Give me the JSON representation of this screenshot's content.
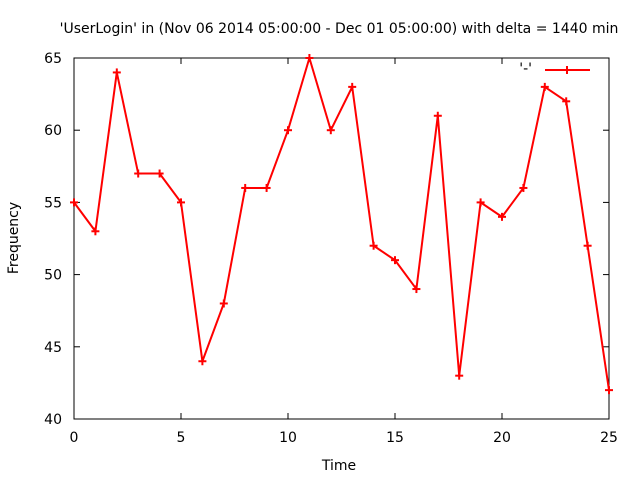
{
  "chart_data": {
    "type": "line",
    "title": "'UserLogin' in (Nov 06 2014 05:00:00 - Dec 01 05:00:00) with delta = 1440 min",
    "xlabel": "Time",
    "ylabel": "Frequency",
    "xlim": [
      0,
      25
    ],
    "ylim": [
      40,
      65
    ],
    "xticks": [
      0,
      5,
      10,
      15,
      20,
      25
    ],
    "yticks": [
      40,
      45,
      50,
      55,
      60,
      65
    ],
    "grid": false,
    "legend_position": "top-right",
    "series": [
      {
        "name": "'-'",
        "color": "#ff0000",
        "marker": "plus",
        "x": [
          0,
          1,
          2,
          3,
          4,
          5,
          6,
          7,
          8,
          9,
          10,
          11,
          12,
          13,
          14,
          15,
          16,
          17,
          18,
          19,
          20,
          21,
          22,
          23,
          24,
          25
        ],
        "y": [
          55,
          53,
          64,
          57,
          57,
          55,
          44,
          48,
          56,
          56,
          60,
          65,
          60,
          63,
          52,
          51,
          49,
          61,
          43,
          55,
          54,
          56,
          63,
          62,
          52,
          42
        ]
      }
    ]
  }
}
